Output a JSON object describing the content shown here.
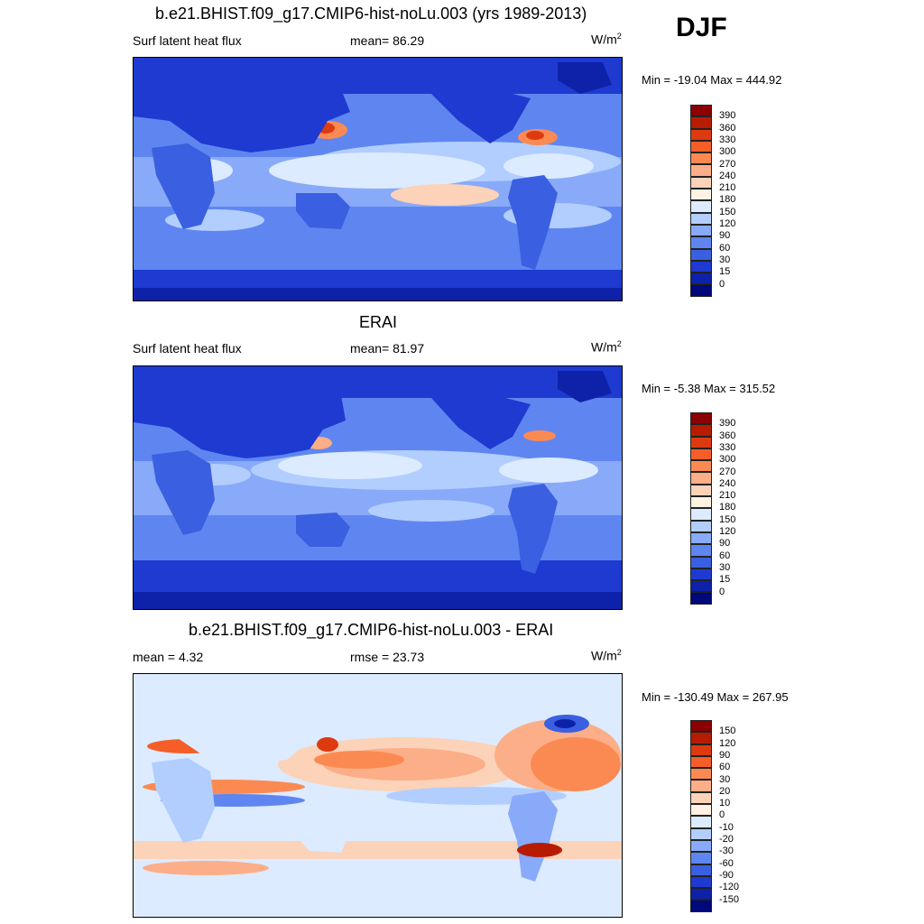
{
  "season": "DJF",
  "panels": [
    {
      "id": "model",
      "title": "b.e21.BHIST.f09_g17.CMIP6-hist-noLu.003 (yrs 1989-2013)",
      "left_text": "Surf latent heat flux",
      "mid_text": "mean=  86.29",
      "units": "W/m",
      "units_sup": "2",
      "minmax": "Min = -19.04 Max = 444.92",
      "levels": [
        "390",
        "360",
        "330",
        "300",
        "270",
        "240",
        "210",
        "180",
        "150",
        "120",
        "90",
        "60",
        "30",
        "15",
        "0"
      ],
      "colors": [
        "#8b0000",
        "#b71c00",
        "#dd3a10",
        "#f55e28",
        "#fb8a52",
        "#fcae88",
        "#fcd2b8",
        "#fff2e2",
        "#dcebff",
        "#b2ceff",
        "#88aaf8",
        "#5f86f0",
        "#3a5fe0",
        "#1e3ad0",
        "#0d22a8",
        "#00087a"
      ]
    },
    {
      "id": "obs",
      "title": "ERAI",
      "left_text": "Surf latent heat flux",
      "mid_text": "mean=  81.97",
      "units": "W/m",
      "units_sup": "2",
      "minmax": "Min =  -5.38 Max = 315.52",
      "levels": [
        "390",
        "360",
        "330",
        "300",
        "270",
        "240",
        "210",
        "180",
        "150",
        "120",
        "90",
        "60",
        "30",
        "15",
        "0"
      ],
      "colors": [
        "#8b0000",
        "#b71c00",
        "#dd3a10",
        "#f55e28",
        "#fb8a52",
        "#fcae88",
        "#fcd2b8",
        "#fff2e2",
        "#dcebff",
        "#b2ceff",
        "#88aaf8",
        "#5f86f0",
        "#3a5fe0",
        "#1e3ad0",
        "#0d22a8",
        "#00087a"
      ]
    },
    {
      "id": "diff",
      "title": "b.e21.BHIST.f09_g17.CMIP6-hist-noLu.003 - ERAI",
      "left_text": "mean =   4.32",
      "mid_text": "rmse =  23.73",
      "units": "W/m",
      "units_sup": "2",
      "minmax": "Min = -130.49 Max = 267.95",
      "levels": [
        "150",
        "120",
        "90",
        "60",
        "30",
        "20",
        "10",
        "0",
        "-10",
        "-20",
        "-30",
        "-60",
        "-90",
        "-120",
        "-150"
      ],
      "colors": [
        "#8b0000",
        "#b71c00",
        "#dd3a10",
        "#f55e28",
        "#fb8a52",
        "#fcae88",
        "#fcd2b8",
        "#fff2e2",
        "#dcebff",
        "#b2ceff",
        "#88aaf8",
        "#5f86f0",
        "#3a5fe0",
        "#1e3ad0",
        "#0d22a8",
        "#00087a"
      ]
    }
  ]
}
